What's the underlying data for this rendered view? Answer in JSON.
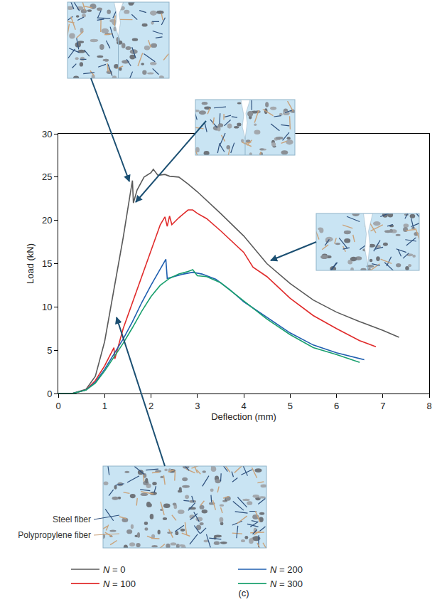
{
  "chart_data": {
    "type": "line",
    "x_label": "Deflection (mm)",
    "y_label": "Load (kN)",
    "xlim": [
      0,
      8
    ],
    "xticks": [
      0,
      1,
      2,
      3,
      4,
      5,
      6,
      7,
      8
    ],
    "ylim": [
      0,
      30
    ],
    "yticks": [
      0,
      5,
      10,
      15,
      20,
      25,
      30
    ],
    "grid": false,
    "legend": "bottom",
    "annotations": [
      "Steel fiber",
      "Polypropylene fiber"
    ],
    "caption": "(c)",
    "series": [
      {
        "name": "N = 0",
        "color": "#5a5a5a",
        "x": [
          0,
          0.3,
          0.6,
          0.8,
          1.0,
          1.2,
          1.4,
          1.55,
          1.6,
          1.62,
          1.7,
          1.85,
          2.0,
          2.05,
          2.15,
          2.3,
          2.4,
          2.6,
          2.8,
          3.0,
          3.5,
          4.0,
          4.5,
          5.0,
          5.5,
          6.0,
          6.5,
          7.0,
          7.35
        ],
        "values": [
          0,
          0,
          0.5,
          2,
          6,
          12,
          18,
          23,
          24.6,
          22,
          23.5,
          25,
          25.5,
          25.9,
          25.2,
          25.3,
          25.1,
          25.0,
          24.2,
          23.3,
          20.8,
          18.2,
          15.0,
          12.7,
          10.8,
          9.4,
          8.3,
          7.3,
          6.5
        ]
      },
      {
        "name": "N = 100",
        "color": "#e02a2a",
        "x": [
          0,
          0.3,
          0.6,
          0.8,
          1.0,
          1.2,
          1.22,
          1.4,
          1.6,
          1.8,
          2.0,
          2.2,
          2.3,
          2.35,
          2.4,
          2.45,
          2.6,
          2.8,
          2.9,
          3.0,
          3.2,
          3.5,
          4.0,
          4.2,
          4.5,
          5.0,
          5.5,
          6.0,
          6.5,
          6.85
        ],
        "values": [
          0,
          0,
          0.4,
          1.5,
          3.2,
          5.3,
          4.0,
          7.5,
          10.5,
          13.5,
          16.5,
          19.5,
          20.4,
          19.3,
          20.5,
          19.5,
          20.3,
          21.2,
          21.2,
          20.8,
          20.2,
          18.8,
          16.3,
          14.6,
          13.5,
          11.0,
          9.0,
          7.5,
          6.1,
          5.4
        ]
      },
      {
        "name": "N = 200",
        "color": "#1f5fb0",
        "x": [
          0,
          0.3,
          0.6,
          0.8,
          1.0,
          1.2,
          1.4,
          1.6,
          1.8,
          2.0,
          2.2,
          2.32,
          2.35,
          2.5,
          2.7,
          2.9,
          3.1,
          3.4,
          3.7,
          4.0,
          4.5,
          5.0,
          5.5,
          6.0,
          6.6
        ],
        "values": [
          0,
          0,
          0.4,
          1.3,
          2.8,
          4.5,
          6.3,
          8.3,
          10.5,
          12.5,
          14.3,
          15.5,
          13.3,
          13.5,
          13.8,
          14.0,
          13.8,
          13.2,
          12.0,
          10.6,
          8.8,
          7.0,
          5.6,
          4.7,
          3.9
        ]
      },
      {
        "name": "N = 300",
        "color": "#1aa06e",
        "x": [
          0,
          0.3,
          0.6,
          0.8,
          1.0,
          1.2,
          1.4,
          1.6,
          1.8,
          2.0,
          2.2,
          2.4,
          2.6,
          2.8,
          2.9,
          3.0,
          3.2,
          3.5,
          3.8,
          4.0,
          4.5,
          5.0,
          5.5,
          6.0,
          6.5
        ],
        "values": [
          0,
          0,
          0.4,
          1.2,
          2.6,
          4.2,
          5.8,
          7.6,
          9.5,
          11.2,
          12.5,
          13.3,
          13.8,
          14.1,
          14.3,
          13.6,
          13.5,
          12.8,
          11.5,
          10.7,
          8.6,
          6.8,
          5.3,
          4.5,
          3.6
        ]
      }
    ]
  }
}
